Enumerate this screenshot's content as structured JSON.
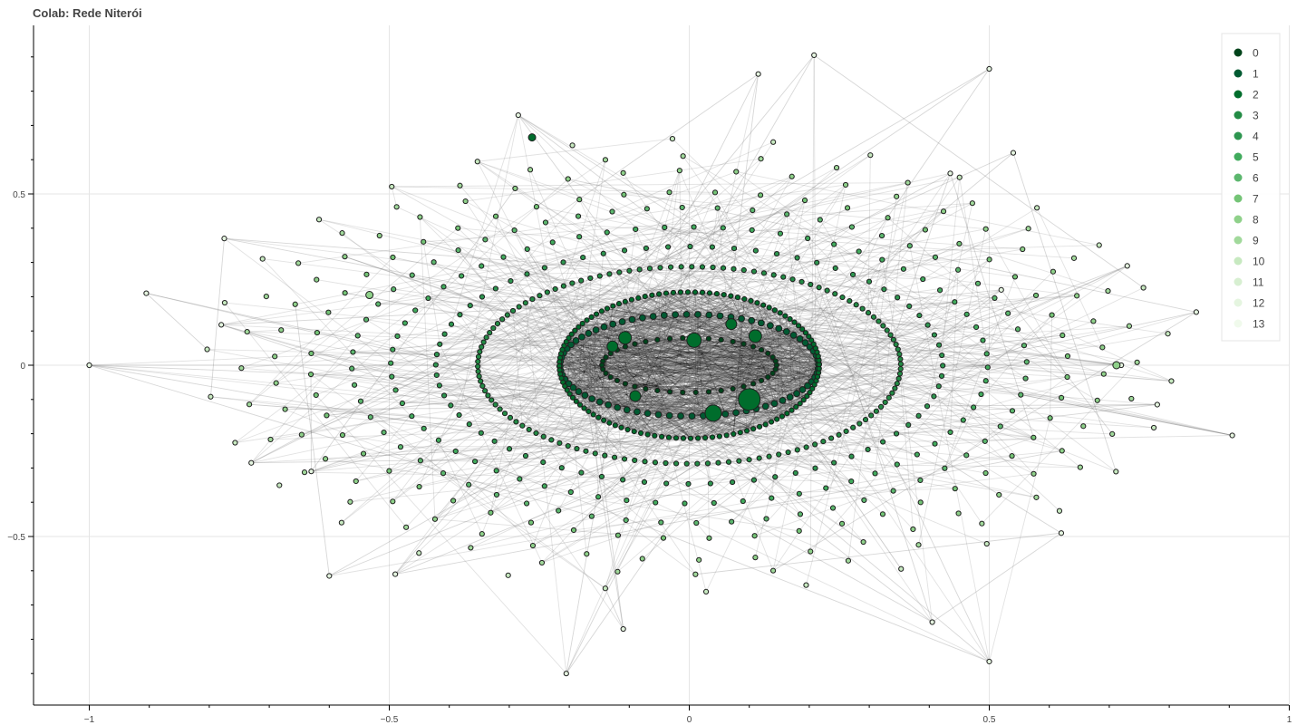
{
  "chart_data": {
    "type": "scatter",
    "title": "Colab: Rede Niterói",
    "xlabel": "",
    "ylabel": "",
    "xlim": [
      -1.1,
      1.0
    ],
    "ylim": [
      -1.0,
      1.0
    ],
    "x_ticks": [
      -1,
      -0.5,
      0,
      0.5,
      1
    ],
    "x_tick_labels": [
      "−1",
      "−0.5",
      "0",
      "0.5",
      "1"
    ],
    "y_ticks": [
      0.5,
      0,
      -0.5
    ],
    "y_tick_labels": [
      "0.5",
      "0",
      "−0.5"
    ],
    "grid": true,
    "legend_position": "top-right",
    "legend": [
      "0",
      "1",
      "2",
      "3",
      "4",
      "5",
      "6",
      "7",
      "8",
      "9",
      "10",
      "11",
      "12",
      "13"
    ],
    "color_scale": [
      "#00441b",
      "#005a32",
      "#006d2c",
      "#238b45",
      "#2e9650",
      "#41ab5d",
      "#5cb76e",
      "#74c476",
      "#8fd18a",
      "#a1d99b",
      "#c7e9c0",
      "#d7efd1",
      "#e5f5e0",
      "#f0faec"
    ],
    "rings": [
      {
        "rx": 0.1455,
        "ry": 0.0795,
        "count": 42,
        "level": 0,
        "size": 2.6
      },
      {
        "rx": 0.2155,
        "ry": 0.1485,
        "count": 72,
        "level": 1,
        "size": 3.4
      },
      {
        "rx": 0.2165,
        "ry": 0.2135,
        "count": 112,
        "level": 2,
        "size": 2.6
      },
      {
        "rx": 0.3525,
        "ry": 0.2875,
        "count": 126,
        "level": 3,
        "size": 2.6
      },
      {
        "rx": 0.4225,
        "ry": 0.3465,
        "count": 72,
        "level": 4,
        "size": 2.6
      },
      {
        "rx": 0.4975,
        "ry": 0.4035,
        "count": 64,
        "level": 5,
        "size": 2.6
      },
      {
        "rx": 0.5625,
        "ry": 0.4605,
        "count": 60,
        "level": 6,
        "size": 2.6
      },
      {
        "rx": 0.6315,
        "ry": 0.5055,
        "count": 52,
        "level": 7,
        "size": 2.6
      },
      {
        "rx": 0.6915,
        "ry": 0.5685,
        "count": 46,
        "level": 8,
        "size": 2.6
      },
      {
        "rx": 0.7465,
        "ry": 0.6105,
        "count": 36,
        "level": 9,
        "size": 2.6
      },
      {
        "rx": 0.8055,
        "ry": 0.6615,
        "count": 30,
        "level": 10,
        "size": 2.6
      }
    ],
    "outliers": [
      {
        "x": -1.0,
        "y": 0.0
      },
      {
        "x": -0.905,
        "y": 0.21
      },
      {
        "x": -0.78,
        "y": 0.118
      },
      {
        "x": -0.775,
        "y": 0.37
      },
      {
        "x": -0.73,
        "y": -0.285
      },
      {
        "x": -0.63,
        "y": -0.31
      },
      {
        "x": -0.6,
        "y": -0.615
      },
      {
        "x": -0.49,
        "y": -0.61
      },
      {
        "x": -0.285,
        "y": 0.73
      },
      {
        "x": -0.205,
        "y": -0.9
      },
      {
        "x": 0.115,
        "y": 0.85
      },
      {
        "x": 0.208,
        "y": 0.905
      },
      {
        "x": 0.5,
        "y": 0.865
      },
      {
        "x": 0.5,
        "y": -0.865
      },
      {
        "x": 0.54,
        "y": 0.62
      },
      {
        "x": 0.52,
        "y": 0.22
      },
      {
        "x": 0.62,
        "y": -0.49
      },
      {
        "x": 0.72,
        "y": 0.0
      },
      {
        "x": 0.73,
        "y": 0.29
      },
      {
        "x": 0.78,
        "y": -0.115
      },
      {
        "x": 0.845,
        "y": 0.155
      },
      {
        "x": 0.905,
        "y": -0.205
      },
      {
        "x": 0.405,
        "y": -0.75
      },
      {
        "x": -0.11,
        "y": -0.77
      },
      {
        "x": 0.435,
        "y": 0.56
      }
    ],
    "hubs": [
      {
        "x": 0.1,
        "y": -0.1,
        "r": 12
      },
      {
        "x": 0.04,
        "y": -0.14,
        "r": 9
      },
      {
        "x": 0.008,
        "y": 0.073,
        "r": 8
      },
      {
        "x": 0.11,
        "y": 0.085,
        "r": 7
      },
      {
        "x": -0.107,
        "y": 0.08,
        "r": 7
      },
      {
        "x": -0.128,
        "y": 0.055,
        "r": 6
      },
      {
        "x": 0.07,
        "y": 0.12,
        "r": 6
      },
      {
        "x": -0.09,
        "y": -0.09,
        "r": 6
      },
      {
        "x": -0.533,
        "y": 0.205,
        "r": 4
      },
      {
        "x": -0.262,
        "y": 0.665,
        "r": 4
      },
      {
        "x": 0.712,
        "y": 0.0,
        "r": 4
      }
    ]
  }
}
